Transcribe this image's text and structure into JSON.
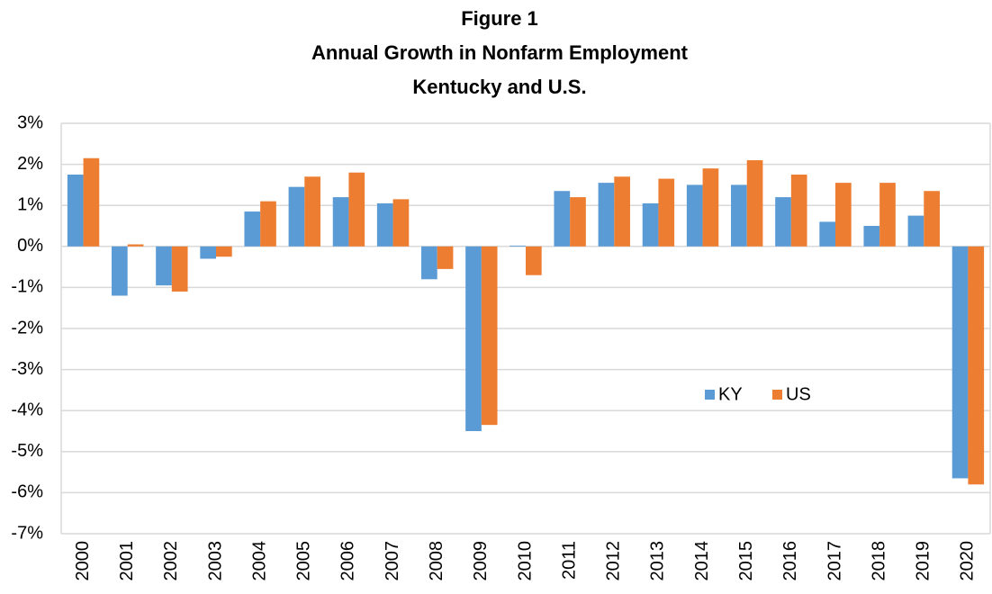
{
  "chart_data": {
    "type": "bar",
    "title": [
      "Figure 1",
      "Annual Growth in Nonfarm Employment",
      "Kentucky and U.S."
    ],
    "categories": [
      "2000",
      "2001",
      "2002",
      "2003",
      "2004",
      "2005",
      "2006",
      "2007",
      "2008",
      "2009",
      "2010",
      "2011",
      "2012",
      "2013",
      "2014",
      "2015",
      "2016",
      "2017",
      "2018",
      "2019",
      "2020"
    ],
    "series": [
      {
        "name": "KY",
        "color": "#5b9bd5",
        "values": [
          1.75,
          -1.2,
          -0.95,
          -0.3,
          0.85,
          1.45,
          1.2,
          1.05,
          -0.8,
          -4.5,
          0.02,
          1.35,
          1.55,
          1.05,
          1.5,
          1.5,
          1.2,
          0.6,
          0.5,
          0.75,
          -5.65
        ]
      },
      {
        "name": "US",
        "color": "#ed7d31",
        "values": [
          2.15,
          0.05,
          -1.1,
          -0.25,
          1.1,
          1.7,
          1.8,
          1.15,
          -0.55,
          -4.35,
          -0.7,
          1.2,
          1.7,
          1.65,
          1.9,
          2.1,
          1.75,
          1.55,
          1.55,
          1.35,
          -5.8
        ]
      }
    ],
    "ylim": [
      -7,
      3
    ],
    "yticks": [
      {
        "value": -7,
        "label": "-7%"
      },
      {
        "value": -6,
        "label": "-6%"
      },
      {
        "value": -5,
        "label": "-5%"
      },
      {
        "value": -4,
        "label": "-4%"
      },
      {
        "value": -3,
        "label": "-3%"
      },
      {
        "value": -2,
        "label": "-2%"
      },
      {
        "value": -1,
        "label": "-1%"
      },
      {
        "value": 0,
        "label": "0%"
      },
      {
        "value": 1,
        "label": "1%"
      },
      {
        "value": 2,
        "label": "2%"
      },
      {
        "value": 3,
        "label": "3%"
      }
    ],
    "grid": true
  }
}
